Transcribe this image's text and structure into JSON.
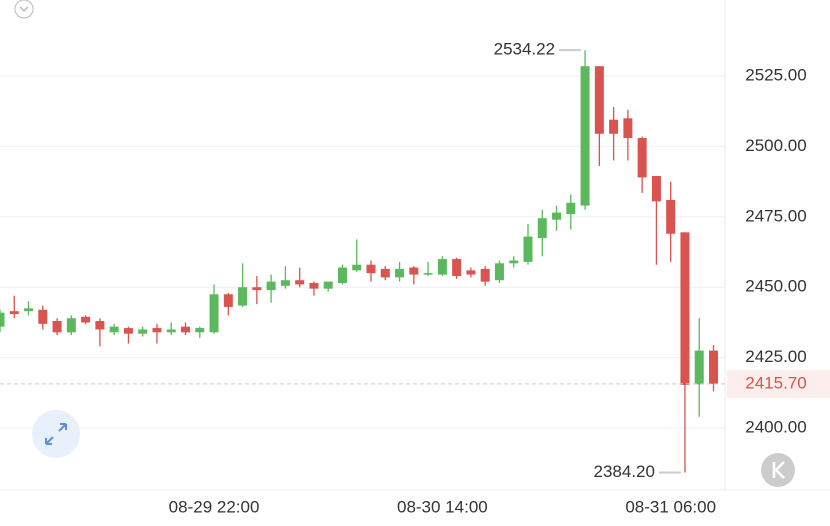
{
  "chart_data": {
    "type": "candlestick",
    "categories": [
      null,
      null,
      null,
      null,
      null,
      null,
      null,
      null,
      null,
      null,
      null,
      null,
      null,
      null,
      null,
      "08-29 22:00",
      null,
      null,
      null,
      null,
      null,
      null,
      null,
      null,
      null,
      null,
      null,
      null,
      null,
      null,
      null,
      "08-30 14:00",
      null,
      null,
      null,
      null,
      null,
      null,
      null,
      null,
      null,
      null,
      null,
      null,
      null,
      null,
      null,
      "08-31 06:00",
      null,
      null,
      null
    ],
    "open": [
      2436,
      2441.5,
      2441.5,
      2442,
      2438,
      2434,
      2439.5,
      2438,
      2434,
      2435.5,
      2433.5,
      2435.5,
      2434,
      2436,
      2434,
      2434,
      2447.5,
      2443.5,
      2450,
      2449,
      2450.5,
      2452.5,
      2451.5,
      2449.5,
      2451.5,
      2456,
      2458,
      2456.5,
      2453.5,
      2457,
      2454.5,
      2454.5,
      2460,
      2456,
      2456.5,
      2452.5,
      2458.5,
      2459,
      2467.5,
      2474,
      2476,
      2479,
      2528.5,
      2509.5,
      2510,
      2503,
      2489.5,
      2481,
      2469.5,
      2415.5,
      2427.5
    ],
    "high": [
      2442,
      2447,
      2445,
      2443.5,
      2439,
      2440,
      2440,
      2439,
      2437,
      2436,
      2436,
      2437,
      2437.5,
      2437.5,
      2436,
      2451,
      2448,
      2458.5,
      2454,
      2454.5,
      2457.5,
      2457,
      2452,
      2452,
      2458,
      2467,
      2459.5,
      2457.5,
      2459,
      2457.5,
      2459,
      2461,
      2460.5,
      2457,
      2457.5,
      2459.5,
      2461,
      2472.5,
      2477.5,
      2479,
      2483,
      2534.22,
      2528.5,
      2514,
      2513,
      2503.5,
      2489.5,
      2487.5,
      2469.5,
      2439,
      2429.5
    ],
    "low": [
      2434,
      2439,
      2440,
      2435,
      2433,
      2433,
      2437,
      2429,
      2433,
      2430,
      2432.5,
      2430,
      2433,
      2433,
      2432,
      2433.5,
      2440,
      2443,
      2444,
      2444.5,
      2449.5,
      2450,
      2447,
      2448.5,
      2451,
      2455.5,
      2452,
      2452.5,
      2452,
      2451,
      2454,
      2454,
      2453,
      2453.5,
      2450.5,
      2451.5,
      2457,
      2458,
      2461,
      2470,
      2470.5,
      2477.5,
      2493,
      2495,
      2495,
      2483.5,
      2458,
      2459,
      2384.2,
      2404,
      2413
    ],
    "close": [
      2441,
      2440.5,
      2442.5,
      2437,
      2434,
      2439,
      2437.5,
      2435,
      2436,
      2433.5,
      2435,
      2434,
      2435,
      2434,
      2435.5,
      2447.5,
      2443,
      2450,
      2449,
      2452,
      2452.5,
      2451,
      2449.5,
      2452,
      2457,
      2458,
      2455,
      2453.5,
      2456.5,
      2454.5,
      2455,
      2460,
      2454,
      2454.5,
      2452,
      2458.5,
      2459.5,
      2468,
      2474.5,
      2476.5,
      2480,
      2528.5,
      2504.5,
      2504.5,
      2503,
      2489,
      2480.5,
      2469,
      2415.3,
      2427.5,
      2415.7
    ],
    "up_color": "#5cb85c",
    "down_color": "#d9534f",
    "ylim": [
      2378,
      2552
    ],
    "yticks": [
      {
        "value": 2400,
        "label": "2400.00"
      },
      {
        "value": 2425,
        "label": "2425.00"
      },
      {
        "value": 2450,
        "label": "2450.00"
      },
      {
        "value": 2475,
        "label": "2475.00"
      },
      {
        "value": 2500,
        "label": "2500.00"
      },
      {
        "value": 2525,
        "label": "2525.00"
      }
    ],
    "grid": true,
    "max_marker": {
      "value": 2534.22,
      "label": "2534.22"
    },
    "min_marker": {
      "value": 2384.2,
      "label": "2384.20"
    },
    "last_price": {
      "value": 2415.7,
      "label": "2415.70"
    }
  }
}
